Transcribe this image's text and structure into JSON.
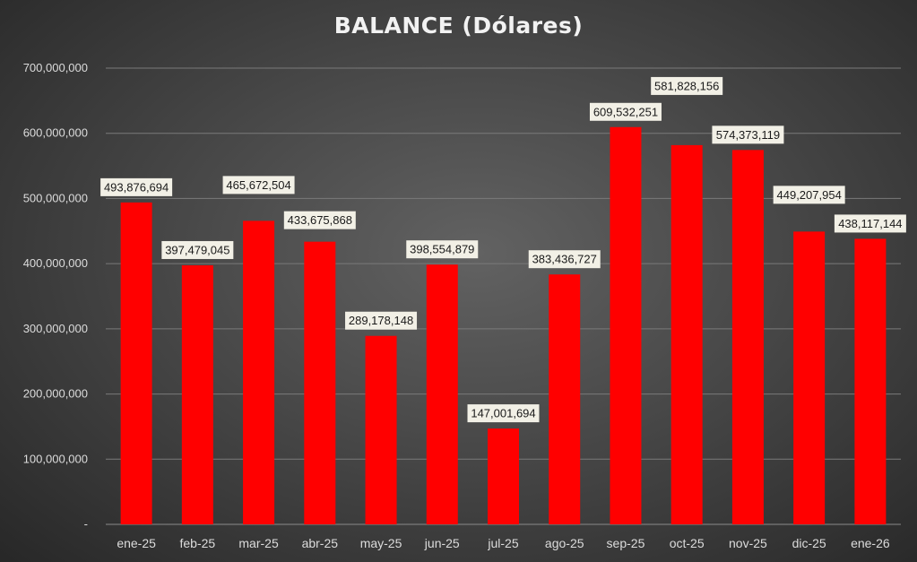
{
  "chart_data": {
    "type": "bar",
    "title": "BALANCE (Dólares)",
    "xlabel": "",
    "ylabel": "",
    "ylim": [
      0,
      700000000
    ],
    "y_ticks": [
      0,
      100000000,
      200000000,
      300000000,
      400000000,
      500000000,
      600000000,
      700000000
    ],
    "y_tick_labels": [
      "-",
      "100,000,000",
      "200,000,000",
      "300,000,000",
      "400,000,000",
      "500,000,000",
      "600,000,000",
      "700,000,000"
    ],
    "grid": true,
    "legend": "none",
    "categories": [
      "ene-25",
      "feb-25",
      "mar-25",
      "abr-25",
      "may-25",
      "jun-25",
      "jul-25",
      "ago-25",
      "sep-25",
      "oct-25",
      "nov-25",
      "dic-25",
      "ene-26"
    ],
    "values": [
      493876694,
      397479045,
      465672504,
      433675868,
      289178148,
      398554879,
      147001694,
      383436727,
      609532251,
      581828156,
      574373119,
      449207954,
      438117144
    ],
    "data_labels": [
      "493,876,694",
      "397,479,045",
      "465,672,504",
      "433,675,868",
      "289,178,148",
      "398,554,879",
      "147,001,694",
      "383,436,727",
      "609,532,251",
      "581,828,156",
      "574,373,119",
      "449,207,954",
      "438,117,144"
    ],
    "colors": {
      "bar": "#ff0000",
      "label_box": "#f2f0e6",
      "label_text": "#1a1a1a",
      "axis_text": "#dcdcdc",
      "gridline": "#7a7a7a",
      "title": "#f2f2f2"
    }
  }
}
